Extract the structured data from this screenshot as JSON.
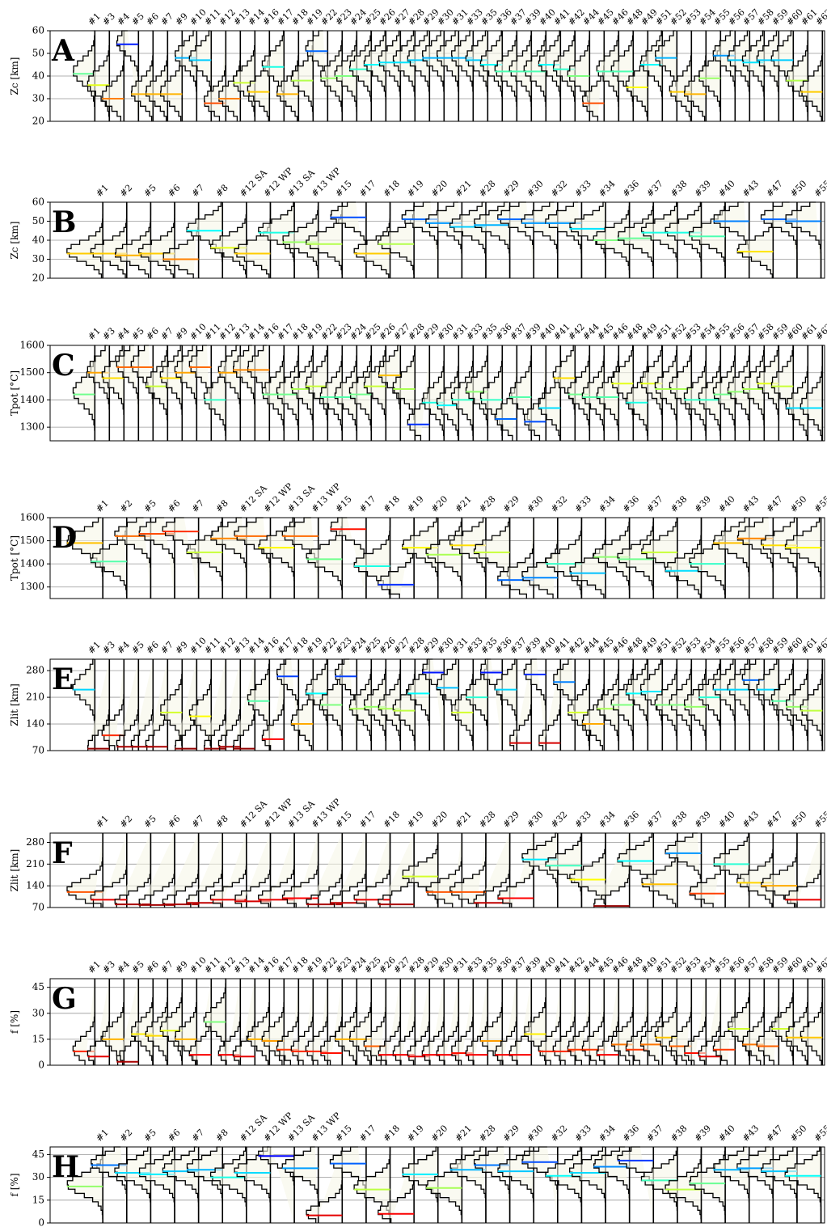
{
  "chart_data": [
    {
      "type": "ridge",
      "panel": "A",
      "ylabel": "Zc [km]",
      "ylim": [
        20,
        60
      ],
      "yticks": [
        20,
        30,
        40,
        50,
        60
      ],
      "grid": true,
      "colormap": "jet_r",
      "categories": [
        "#1",
        "#3",
        "#4",
        "#5",
        "#6",
        "#7",
        "#9",
        "#10",
        "#11",
        "#12",
        "#13",
        "#14",
        "#16",
        "#17",
        "#18",
        "#19",
        "#22",
        "#23",
        "#24",
        "#25",
        "#26",
        "#27",
        "#28",
        "#29",
        "#30",
        "#31",
        "#33",
        "#35",
        "#36",
        "#37",
        "#39",
        "#40",
        "#41",
        "#42",
        "#44",
        "#45",
        "#46",
        "#48",
        "#49",
        "#51",
        "#52",
        "#53",
        "#54",
        "#55",
        "#56",
        "#57",
        "#58",
        "#59",
        "#60",
        "#61",
        "#62"
      ],
      "values": [
        41,
        36,
        30,
        54,
        32,
        32,
        32,
        48,
        47,
        28,
        30,
        37,
        33,
        44,
        32,
        38,
        51,
        39,
        40,
        43,
        45,
        46,
        46,
        47,
        48,
        48,
        48,
        47,
        45,
        42,
        42,
        42,
        45,
        43,
        40,
        28,
        42,
        42,
        35,
        45,
        48,
        33,
        32,
        39,
        49,
        47,
        46,
        47,
        47,
        38,
        33
      ]
    },
    {
      "type": "ridge",
      "panel": "B",
      "ylabel": "Zc [km]",
      "ylim": [
        20,
        60
      ],
      "yticks": [
        20,
        30,
        40,
        50,
        60
      ],
      "grid": true,
      "colormap": "jet_r",
      "categories": [
        "#1",
        "#2",
        "#5",
        "#6",
        "#7",
        "#8",
        "#12 SA",
        "#12 WP",
        "#13 SA",
        "#13 WP",
        "#15",
        "#17",
        "#18",
        "#19",
        "#20",
        "#21",
        "#28",
        "#29",
        "#30",
        "#32",
        "#33",
        "#34",
        "#36",
        "#37",
        "#38",
        "#39",
        "#40",
        "#43",
        "#47",
        "#50",
        "#55"
      ],
      "values": [
        33,
        33,
        32,
        33,
        30,
        45,
        36,
        33,
        44,
        39,
        38,
        52,
        33,
        38,
        51,
        49,
        47,
        48,
        51,
        49,
        49,
        46,
        40,
        41,
        44,
        44,
        42,
        50,
        34,
        51,
        50
      ]
    },
    {
      "type": "ridge",
      "panel": "C",
      "ylabel": "Tpot [°C]",
      "ylim": [
        1250,
        1600
      ],
      "yticks": [
        1300,
        1400,
        1500,
        1600
      ],
      "grid": true,
      "colormap": "jet",
      "categories": [
        "#1",
        "#3",
        "#4",
        "#5",
        "#6",
        "#7",
        "#9",
        "#10",
        "#11",
        "#12",
        "#13",
        "#14",
        "#16",
        "#17",
        "#18",
        "#19",
        "#22",
        "#23",
        "#24",
        "#25",
        "#26",
        "#27",
        "#28",
        "#29",
        "#30",
        "#31",
        "#33",
        "#35",
        "#36",
        "#37",
        "#39",
        "#40",
        "#41",
        "#42",
        "#44",
        "#45",
        "#46",
        "#48",
        "#49",
        "#51",
        "#52",
        "#53",
        "#54",
        "#55",
        "#56",
        "#57",
        "#58",
        "#59",
        "#60",
        "#61",
        "#62"
      ],
      "values": [
        1420,
        1500,
        1480,
        1520,
        1520,
        1450,
        1480,
        1500,
        1520,
        1400,
        1500,
        1510,
        1510,
        1420,
        1420,
        1440,
        1450,
        1410,
        1410,
        1420,
        1450,
        1490,
        1440,
        1310,
        1390,
        1380,
        1400,
        1430,
        1400,
        1330,
        1410,
        1320,
        1370,
        1480,
        1420,
        1410,
        1410,
        1460,
        1390,
        1460,
        1440,
        1440,
        1400,
        1400,
        1420,
        1430,
        1440,
        1460,
        1450,
        1370,
        1370
      ]
    },
    {
      "type": "ridge",
      "panel": "D",
      "ylabel": "Tpot [°C]",
      "ylim": [
        1250,
        1600
      ],
      "yticks": [
        1300,
        1400,
        1500,
        1600
      ],
      "grid": true,
      "colormap": "jet",
      "categories": [
        "#1",
        "#2",
        "#5",
        "#6",
        "#7",
        "#8",
        "#12 SA",
        "#12 WP",
        "#13 SA",
        "#13 WP",
        "#15",
        "#17",
        "#18",
        "#19",
        "#20",
        "#21",
        "#28",
        "#29",
        "#30",
        "#32",
        "#33",
        "#34",
        "#36",
        "#37",
        "#38",
        "#39",
        "#40",
        "#43",
        "#47",
        "#50",
        "#55"
      ],
      "values": [
        1490,
        1410,
        1520,
        1530,
        1540,
        1450,
        1510,
        1520,
        1470,
        1520,
        1420,
        1550,
        1390,
        1310,
        1470,
        1440,
        1480,
        1450,
        1330,
        1340,
        1400,
        1360,
        1430,
        1420,
        1450,
        1370,
        1400,
        1490,
        1510,
        1480,
        1470
      ]
    },
    {
      "type": "ridge",
      "panel": "E",
      "ylabel": "Zlit [km]",
      "ylim": [
        70,
        310
      ],
      "yticks": [
        70,
        140,
        210,
        280
      ],
      "grid": true,
      "colormap": "jet_r",
      "categories": [
        "#1",
        "#3",
        "#4",
        "#5",
        "#6",
        "#7",
        "#9",
        "#10",
        "#11",
        "#12",
        "#13",
        "#14",
        "#16",
        "#17",
        "#18",
        "#19",
        "#22",
        "#23",
        "#24",
        "#25",
        "#26",
        "#27",
        "#28",
        "#29",
        "#30",
        "#31",
        "#33",
        "#35",
        "#36",
        "#37",
        "#39",
        "#40",
        "#41",
        "#42",
        "#44",
        "#45",
        "#46",
        "#48",
        "#49",
        "#51",
        "#52",
        "#53",
        "#54",
        "#55",
        "#56",
        "#57",
        "#58",
        "#59",
        "#60",
        "#61",
        "#62"
      ],
      "values": [
        230,
        75,
        110,
        80,
        80,
        80,
        170,
        75,
        160,
        75,
        80,
        75,
        200,
        100,
        265,
        140,
        220,
        190,
        265,
        180,
        185,
        180,
        175,
        220,
        275,
        235,
        170,
        210,
        275,
        230,
        90,
        270,
        90,
        250,
        170,
        140,
        180,
        190,
        220,
        225,
        190,
        190,
        185,
        210,
        230,
        230,
        255,
        230,
        200,
        185,
        175
      ]
    },
    {
      "type": "ridge",
      "panel": "F",
      "ylabel": "Zlit [km]",
      "ylim": [
        70,
        310
      ],
      "yticks": [
        70,
        140,
        210,
        280
      ],
      "grid": true,
      "colormap": "jet_r",
      "categories": [
        "#1",
        "#2",
        "#5",
        "#6",
        "#7",
        "#8",
        "#12 SA",
        "#12 WP",
        "#13 SA",
        "#13 WP",
        "#15",
        "#17",
        "#18",
        "#19",
        "#20",
        "#21",
        "#28",
        "#29",
        "#30",
        "#32",
        "#33",
        "#34",
        "#36",
        "#37",
        "#38",
        "#39",
        "#40",
        "#43",
        "#47",
        "#50",
        "#55"
      ],
      "values": [
        120,
        95,
        80,
        78,
        80,
        85,
        95,
        90,
        95,
        100,
        80,
        85,
        95,
        80,
        170,
        120,
        120,
        85,
        100,
        225,
        205,
        160,
        75,
        220,
        145,
        245,
        115,
        210,
        150,
        140,
        95
      ]
    },
    {
      "type": "ridge",
      "panel": "G",
      "ylabel": "f [%]",
      "ylim": [
        0,
        50
      ],
      "yticks": [
        0,
        15,
        30,
        45
      ],
      "grid": true,
      "colormap": "jet_r",
      "categories": [
        "#1",
        "#3",
        "#4",
        "#5",
        "#6",
        "#7",
        "#9",
        "#10",
        "#11",
        "#12",
        "#13",
        "#14",
        "#16",
        "#17",
        "#18",
        "#19",
        "#22",
        "#23",
        "#24",
        "#25",
        "#26",
        "#27",
        "#28",
        "#29",
        "#30",
        "#31",
        "#33",
        "#35",
        "#36",
        "#37",
        "#39",
        "#40",
        "#41",
        "#42",
        "#44",
        "#45",
        "#46",
        "#48",
        "#49",
        "#51",
        "#52",
        "#53",
        "#54",
        "#55",
        "#56",
        "#57",
        "#58",
        "#59",
        "#60",
        "#61",
        "#62"
      ],
      "values": [
        8,
        5,
        15,
        2,
        18,
        17,
        20,
        15,
        6,
        25,
        6,
        5,
        15,
        14,
        9,
        8,
        8,
        7,
        15,
        15,
        11,
        6,
        6,
        5,
        6,
        6,
        7,
        6,
        14,
        6,
        6,
        18,
        8,
        8,
        9,
        9,
        6,
        12,
        9,
        12,
        16,
        11,
        7,
        5,
        9,
        21,
        12,
        11,
        21,
        16,
        16
      ]
    },
    {
      "type": "ridge",
      "panel": "H",
      "ylabel": "f [%]",
      "ylim": [
        0,
        50
      ],
      "yticks": [
        0,
        15,
        30,
        45
      ],
      "grid": true,
      "colormap": "jet_r",
      "categories": [
        "#1",
        "#2",
        "#5",
        "#6",
        "#7",
        "#8",
        "#12 SA",
        "#12 WP",
        "#13 SA",
        "#13 WP",
        "#15",
        "#17",
        "#18",
        "#19",
        "#20",
        "#21",
        "#28",
        "#29",
        "#30",
        "#32",
        "#33",
        "#34",
        "#36",
        "#37",
        "#38",
        "#39",
        "#40",
        "#43",
        "#47",
        "#50",
        "#55"
      ],
      "values": [
        24,
        38,
        33,
        32,
        34,
        35,
        30,
        33,
        44,
        36,
        5,
        39,
        22,
        6,
        32,
        23,
        35,
        38,
        34,
        40,
        31,
        33,
        37,
        41,
        28,
        22,
        26,
        35,
        36,
        34,
        31
      ]
    }
  ]
}
